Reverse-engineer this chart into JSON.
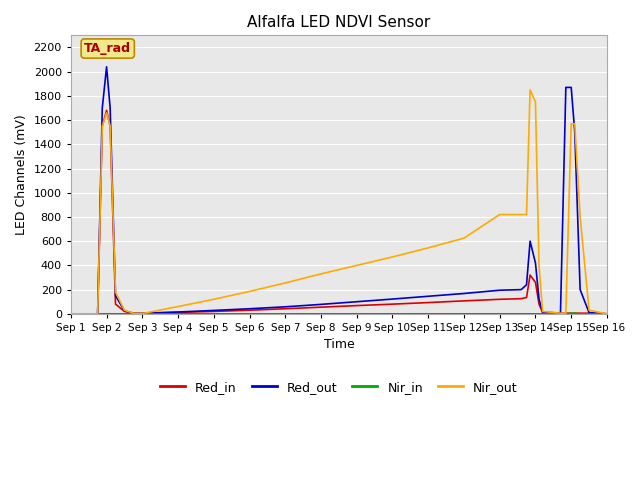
{
  "title": "Alfalfa LED NDVI Sensor",
  "xlabel": "Time",
  "ylabel": "LED Channels (mV)",
  "ylim": [
    0,
    2300
  ],
  "yticks": [
    0,
    200,
    400,
    600,
    800,
    1000,
    1200,
    1400,
    1600,
    1800,
    2000,
    2200
  ],
  "annotation_text": "TA_rad",
  "annotation_color": "#aa0000",
  "annotation_bg": "#f0e88a",
  "annotation_border": "#bb8800",
  "fig_color": "#ffffff",
  "plot_bg_color": "#e8e8e8",
  "grid_color": "#ffffff",
  "line_colors": {
    "Red_in": "#dd0000",
    "Red_out": "#0000cc",
    "Nir_in": "#00aa00",
    "Nir_out": "#ffaa00"
  },
  "x_fine": [
    1.0,
    1.75,
    1.88,
    2.0,
    2.1,
    2.25,
    2.5,
    2.75,
    3.0,
    3.05,
    4.0,
    5.0,
    6.0,
    7.0,
    8.0,
    9.0,
    10.0,
    11.0,
    12.0,
    13.0,
    13.6,
    13.75,
    13.85,
    14.0,
    14.1,
    14.2,
    14.7,
    14.85,
    15.0,
    15.1,
    15.25,
    15.5,
    16.0
  ],
  "Red_in": [
    0,
    0,
    1550,
    1680,
    1550,
    80,
    20,
    5,
    5,
    5,
    12,
    20,
    30,
    42,
    55,
    68,
    80,
    93,
    107,
    120,
    125,
    135,
    320,
    260,
    80,
    10,
    5,
    5,
    5,
    5,
    5,
    5,
    0
  ],
  "Red_out": [
    0,
    0,
    1700,
    2040,
    1700,
    150,
    25,
    5,
    5,
    5,
    15,
    28,
    42,
    58,
    78,
    100,
    122,
    145,
    168,
    195,
    200,
    240,
    600,
    420,
    120,
    15,
    5,
    1870,
    1870,
    1500,
    200,
    10,
    0
  ],
  "Nir_in": [
    0,
    0,
    0,
    0,
    0,
    0,
    0,
    0,
    0,
    0,
    0,
    0,
    0,
    0,
    0,
    0,
    0,
    0,
    0,
    0,
    0,
    0,
    0,
    0,
    0,
    0,
    0,
    0,
    5,
    5,
    0,
    0,
    0
  ],
  "Nir_out": [
    0,
    0,
    1550,
    1660,
    1550,
    180,
    30,
    5,
    5,
    5,
    60,
    120,
    185,
    255,
    330,
    400,
    470,
    545,
    625,
    820,
    820,
    820,
    1850,
    1750,
    400,
    20,
    5,
    5,
    1570,
    1570,
    800,
    30,
    0
  ]
}
